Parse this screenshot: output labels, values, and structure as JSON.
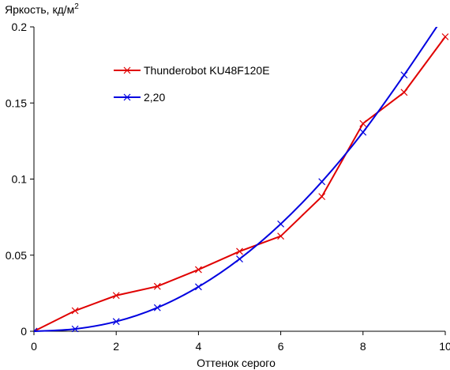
{
  "chart_data": {
    "type": "line",
    "title": "",
    "xlabel": "Оттенок серого",
    "ylabel": "Яркость, кд/м",
    "ylabel_superscript": "2",
    "xlim": [
      0,
      10
    ],
    "ylim": [
      0,
      0.2
    ],
    "x_ticks": [
      0,
      2,
      4,
      6,
      8,
      10
    ],
    "x_tick_labels": [
      "0",
      "2",
      "4",
      "6",
      "8",
      "10"
    ],
    "y_ticks": [
      0,
      0.05,
      0.1,
      0.15,
      0.2
    ],
    "y_tick_labels": [
      "0",
      "0.05",
      "0.1",
      "0.15",
      "0.2"
    ],
    "grid": false,
    "legend_position": "upper-left inside",
    "series": [
      {
        "name": "Thunderobot KU48F120E",
        "color": "#e00000",
        "marker": "x",
        "smooth": false,
        "x": [
          0,
          1,
          2,
          3,
          4,
          5,
          6,
          7,
          8,
          9,
          10
        ],
        "values": [
          0,
          0.0135,
          0.0235,
          0.0295,
          0.0405,
          0.0525,
          0.0625,
          0.0885,
          0.1365,
          0.157,
          0.1935
        ]
      },
      {
        "name": "2,20",
        "color": "#0000e0",
        "marker": "x",
        "smooth": true,
        "x": [
          0,
          1,
          2,
          3,
          4,
          5,
          6,
          7,
          8,
          9,
          10
        ],
        "values": [
          0,
          0.0015,
          0.0064,
          0.0155,
          0.0292,
          0.0475,
          0.0705,
          0.0983,
          0.1308,
          0.1684,
          0.2084
        ]
      }
    ]
  }
}
